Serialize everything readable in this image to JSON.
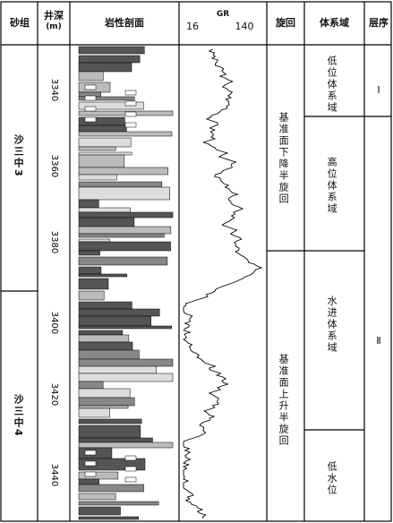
{
  "headers": {
    "sand_group": "砂组",
    "depth": "井深",
    "depth_unit": "(m)",
    "lithology": "岩性剖面",
    "gr": "GR",
    "gr_min": 16,
    "gr_max": 140,
    "cycle": "旋回",
    "systems_tract": "体系域",
    "sequence": "层序"
  },
  "sand_groups": [
    "沙三中3",
    "沙三中4"
  ],
  "depths": [
    3340,
    3360,
    3380,
    3400,
    3420,
    3440
  ],
  "cycles": [
    "基准面下降半旋回",
    "基准面上升半旋回"
  ],
  "systems_tracts": [
    "低位体系域",
    "高位体系域",
    "水进体系域",
    "低水位"
  ],
  "sequences": [
    "Ⅰ",
    "Ⅱ"
  ]
}
